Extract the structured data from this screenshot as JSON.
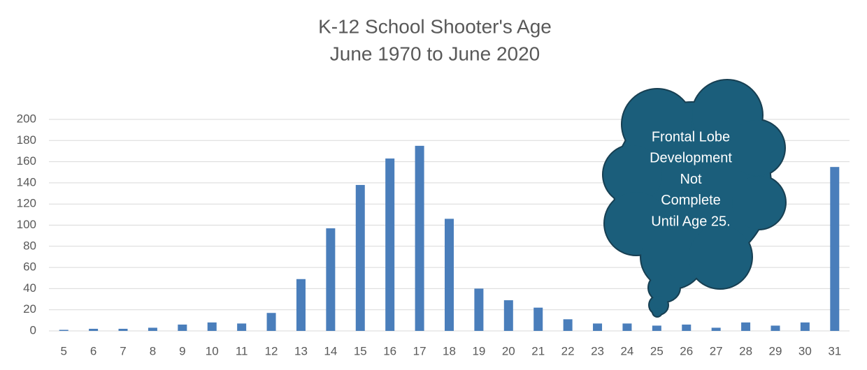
{
  "chart_data": {
    "type": "bar",
    "title": "K-12 School Shooter's Age",
    "subtitle": "June 1970 to June 2020",
    "categories": [
      "5",
      "6",
      "7",
      "8",
      "9",
      "10",
      "11",
      "12",
      "13",
      "14",
      "15",
      "16",
      "17",
      "18",
      "19",
      "20",
      "21",
      "22",
      "23",
      "24",
      "25",
      "26",
      "27",
      "28",
      "29",
      "30",
      "31"
    ],
    "values": [
      1,
      2,
      2,
      3,
      6,
      8,
      7,
      17,
      49,
      97,
      138,
      163,
      175,
      106,
      40,
      29,
      22,
      11,
      7,
      7,
      5,
      6,
      3,
      8,
      5,
      8,
      155
    ],
    "color": "#4a7ebb",
    "ylim": [
      0,
      200
    ],
    "yticks": [
      0,
      20,
      40,
      60,
      80,
      100,
      120,
      140,
      160,
      180,
      200
    ],
    "grid": true,
    "annotation": [
      "Frontal Lobe",
      "Development",
      "Not",
      "Complete",
      "Until Age 25."
    ]
  }
}
